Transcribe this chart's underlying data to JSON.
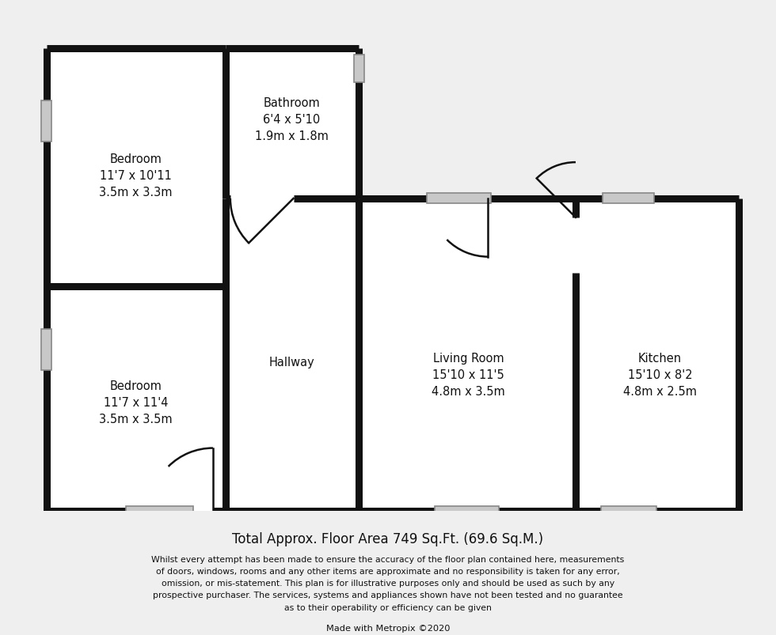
{
  "bg_color": "#efefef",
  "wall_color": "#111111",
  "room_fill": "#ffffff",
  "window_fill": "#c8c8c8",
  "window_edge": "#888888",
  "door_color": "#111111",
  "text_color": "#111111",
  "footer_title": "Total Approx. Floor Area 749 Sq.Ft. (69.6 Sq.M.)",
  "footer_body": "Whilst every attempt has been made to ensure the accuracy of the floor plan contained here, measurements\nof doors, windows, rooms and any other items are approximate and no responsibility is taken for any error,\nomission, or mis-statement. This plan is for illustrative purposes only and should be used as such by any\nprospective purchaser. The services, systems and appliances shown have not been tested and no guarantee\nas to their operability or efficiency can be given",
  "footer_credit": "Made with Metropix ©2020",
  "rooms": [
    {
      "name": "Bedroom\n11'7 x 10'11\n3.5m x 3.3m",
      "ix": 170,
      "iy": 198
    },
    {
      "name": "Bedroom\n11'7 x 11'4\n3.5m x 3.5m",
      "ix": 170,
      "iy": 487
    },
    {
      "name": "Bathroom\n6'4 x 5'10\n1.9m x 1.8m",
      "ix": 368,
      "iy": 127
    },
    {
      "name": "Hallway",
      "ix": 368,
      "iy": 435
    },
    {
      "name": "Living Room\n15'10 x 11'5\n4.8m x 3.5m",
      "ix": 592,
      "iy": 452
    },
    {
      "name": "Kitchen\n15'10 x 8'2\n4.8m x 2.5m",
      "ix": 835,
      "iy": 452
    }
  ],
  "L": 57,
  "R": 935,
  "T": 37,
  "B": 625,
  "Xhl": 284,
  "Xhr": 453,
  "Xkt": 728,
  "Ybb": 228,
  "Ybd": 340,
  "Dbl": 290,
  "Dbr": 370,
  "Dfl": 188,
  "Dfr": 268,
  "Dll": 543,
  "Dlr": 617,
  "Dkt": 252,
  "Dkb": 322,
  "lw_wall": 6.5
}
